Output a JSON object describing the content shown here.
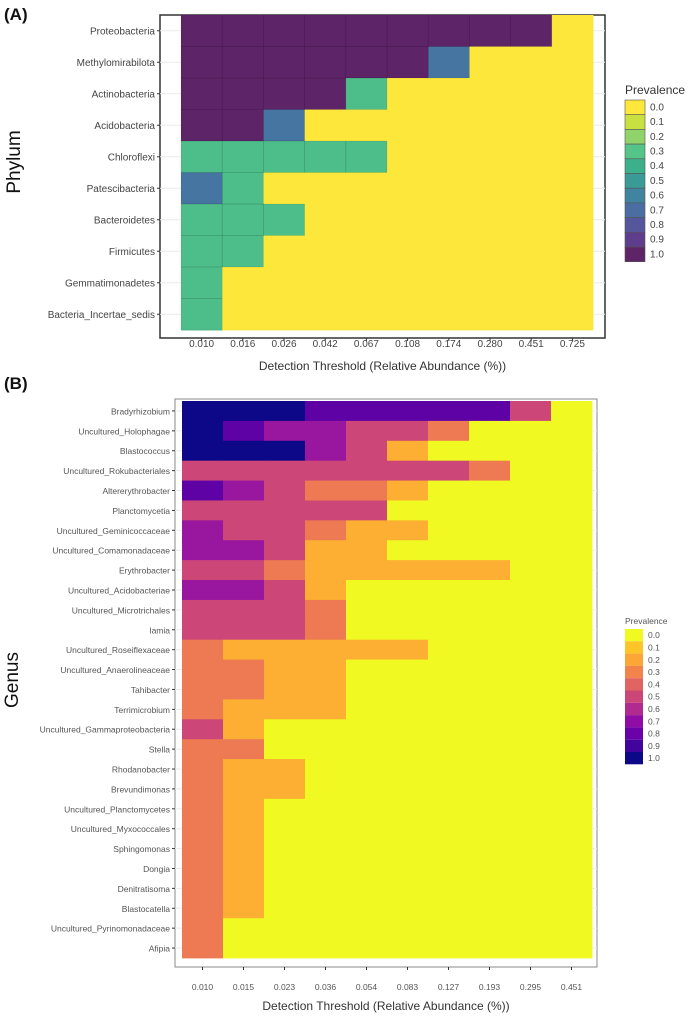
{
  "chart_data": [
    {
      "type": "heatmap",
      "panel_label": "(A)",
      "xlabel": "Detection Threshold (Relative Abundance (%))",
      "ylabel": "Phylum",
      "x": [
        "0.010",
        "0.016",
        "0.026",
        "0.042",
        "0.067",
        "0.108",
        "0.174",
        "0.280",
        "0.451",
        "0.725"
      ],
      "y": [
        "Proteobacteria",
        "Methylomirabilota",
        "Actinobacteria",
        "Acidobacteria",
        "Chloroflexi",
        "Patescibacteria",
        "Bacteroidetes",
        "Firmicutes",
        "Gemmatimonadetes",
        "Bacteria_Incertae_sedis"
      ],
      "values": [
        [
          1,
          1,
          1,
          1,
          1,
          1,
          1,
          1,
          1,
          0
        ],
        [
          1,
          1,
          1,
          1,
          1,
          1,
          0.67,
          0,
          0,
          0
        ],
        [
          1,
          1,
          1,
          1,
          0.33,
          0,
          0,
          0,
          0,
          0
        ],
        [
          1,
          1,
          0.67,
          0,
          0,
          0,
          0,
          0,
          0,
          0
        ],
        [
          0.33,
          0.33,
          0.33,
          0.33,
          0.33,
          0,
          0,
          0,
          0,
          0
        ],
        [
          0.67,
          0.33,
          0,
          0,
          0,
          0,
          0,
          0,
          0,
          0
        ],
        [
          0.33,
          0.33,
          0.33,
          0,
          0,
          0,
          0,
          0,
          0,
          0
        ],
        [
          0.33,
          0.33,
          0,
          0,
          0,
          0,
          0,
          0,
          0,
          0
        ],
        [
          0.33,
          0,
          0,
          0,
          0,
          0,
          0,
          0,
          0,
          0
        ],
        [
          0.33,
          0,
          0,
          0,
          0,
          0,
          0,
          0,
          0,
          0
        ]
      ],
      "legend": {
        "title": "Prevalence",
        "placement": "right",
        "labels": [
          "0.0",
          "0.1",
          "0.2",
          "0.3",
          "0.4",
          "0.5",
          "0.6",
          "0.7",
          "0.8",
          "0.9",
          "1.0"
        ],
        "colors": [
          "#fde73a",
          "#c8e040",
          "#8fd36a",
          "#55c489",
          "#3bb08a",
          "#3a9a95",
          "#41849f",
          "#4a6ea2",
          "#55569b",
          "#5e3d8c",
          "#5e2468"
        ]
      }
    },
    {
      "type": "heatmap",
      "panel_label": "(B)",
      "xlabel": "Detection Threshold (Relative Abundance (%))",
      "ylabel": "Genus",
      "x": [
        "0.010",
        "0.015",
        "0.023",
        "0.036",
        "0.054",
        "0.083",
        "0.127",
        "0.193",
        "0.295",
        "0.451"
      ],
      "y": [
        "Bradyrhizobium",
        "Uncultured_Holophagae",
        "Blastococcus",
        "Uncultured_Rokubacteriales",
        "Altererythrobacter",
        "Planctomycetia",
        "Uncultured_Geminicoccaceae",
        "Uncultured_Comamonadaceae",
        "Erythrobacter",
        "Uncultured_Acidobacteriae",
        "Uncultured_Microtrichales",
        "Iamia",
        "Uncultured_Roseiflexaceae",
        "Uncultured_Anaerolineaceae",
        "Tahibacter",
        "Terrimicrobium",
        "Uncultured_Gammaproteobacteria",
        "Stella",
        "Rhodanobacter",
        "Brevundimonas",
        "Uncultured_Planctomycetes",
        "Uncultured_Myxococcales",
        "Sphingomonas",
        "Dongia",
        "Denitratisoma",
        "Blastocatella",
        "Uncultured_Pyrinomonadaceae",
        "Afipia"
      ],
      "values": [
        [
          1,
          1,
          1,
          0.83,
          0.83,
          0.83,
          0.83,
          0.83,
          0.5,
          0
        ],
        [
          1,
          0.83,
          0.67,
          0.67,
          0.5,
          0.5,
          0.33,
          0,
          0,
          0
        ],
        [
          1,
          1,
          1,
          0.67,
          0.5,
          0.17,
          0,
          0,
          0,
          0
        ],
        [
          0.5,
          0.5,
          0.5,
          0.5,
          0.5,
          0.5,
          0.5,
          0.33,
          0,
          0
        ],
        [
          0.83,
          0.67,
          0.5,
          0.33,
          0.33,
          0.17,
          0,
          0,
          0,
          0
        ],
        [
          0.5,
          0.5,
          0.5,
          0.5,
          0.5,
          0,
          0,
          0,
          0,
          0
        ],
        [
          0.67,
          0.5,
          0.5,
          0.33,
          0.17,
          0.17,
          0,
          0,
          0,
          0
        ],
        [
          0.67,
          0.67,
          0.5,
          0.17,
          0.17,
          0,
          0,
          0,
          0,
          0
        ],
        [
          0.5,
          0.5,
          0.33,
          0.17,
          0.17,
          0.17,
          0.17,
          0.17,
          0,
          0
        ],
        [
          0.67,
          0.67,
          0.5,
          0.17,
          0,
          0,
          0,
          0,
          0,
          0
        ],
        [
          0.5,
          0.5,
          0.5,
          0.33,
          0,
          0,
          0,
          0,
          0,
          0
        ],
        [
          0.5,
          0.5,
          0.5,
          0.33,
          0,
          0,
          0,
          0,
          0,
          0
        ],
        [
          0.33,
          0.17,
          0.17,
          0.17,
          0.17,
          0.17,
          0,
          0,
          0,
          0
        ],
        [
          0.33,
          0.33,
          0.17,
          0.17,
          0,
          0,
          0,
          0,
          0,
          0
        ],
        [
          0.33,
          0.33,
          0.17,
          0.17,
          0,
          0,
          0,
          0,
          0,
          0
        ],
        [
          0.33,
          0.17,
          0.17,
          0.17,
          0,
          0,
          0,
          0,
          0,
          0
        ],
        [
          0.5,
          0.17,
          0,
          0,
          0,
          0,
          0,
          0,
          0,
          0
        ],
        [
          0.33,
          0.33,
          0,
          0,
          0,
          0,
          0,
          0,
          0,
          0
        ],
        [
          0.33,
          0.17,
          0.17,
          0,
          0,
          0,
          0,
          0,
          0,
          0
        ],
        [
          0.33,
          0.17,
          0.17,
          0,
          0,
          0,
          0,
          0,
          0,
          0
        ],
        [
          0.33,
          0.17,
          0,
          0,
          0,
          0,
          0,
          0,
          0,
          0
        ],
        [
          0.33,
          0.17,
          0,
          0,
          0,
          0,
          0,
          0,
          0,
          0
        ],
        [
          0.33,
          0.17,
          0,
          0,
          0,
          0,
          0,
          0,
          0,
          0
        ],
        [
          0.33,
          0.17,
          0,
          0,
          0,
          0,
          0,
          0,
          0,
          0
        ],
        [
          0.33,
          0.17,
          0,
          0,
          0,
          0,
          0,
          0,
          0,
          0
        ],
        [
          0.33,
          0.17,
          0,
          0,
          0,
          0,
          0,
          0,
          0,
          0
        ],
        [
          0.33,
          0,
          0,
          0,
          0,
          0,
          0,
          0,
          0,
          0
        ],
        [
          0.33,
          0,
          0,
          0,
          0,
          0,
          0,
          0,
          0,
          0
        ]
      ],
      "legend": {
        "title": "Prevalence",
        "placement": "right",
        "labels": [
          "0.0",
          "0.1",
          "0.2",
          "0.3",
          "0.4",
          "0.5",
          "0.6",
          "0.7",
          "0.8",
          "0.9",
          "1.0"
        ],
        "colors": [
          "#f0f921",
          "#fdc527",
          "#fca636",
          "#f2844b",
          "#e16462",
          "#cc4778",
          "#b12a90",
          "#8f0da4",
          "#6a00a8",
          "#41049d",
          "#0d0887"
        ]
      }
    }
  ]
}
